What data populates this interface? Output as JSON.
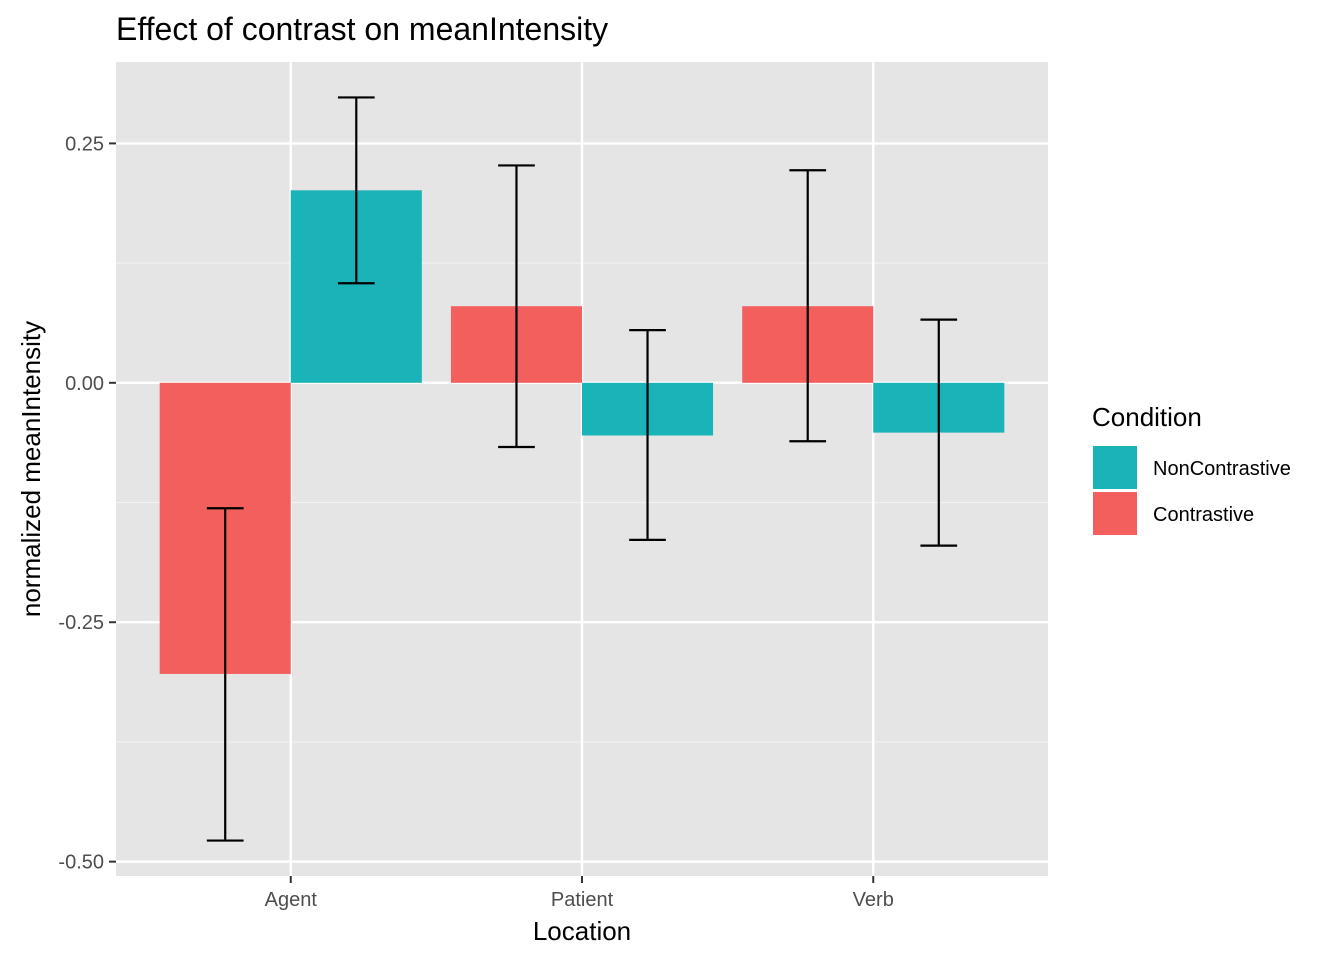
{
  "chart_data": {
    "type": "bar",
    "title": "Effect of contrast on meanIntensity",
    "xlabel": "Location",
    "ylabel": "normalized meanIntensity",
    "categories": [
      "Agent",
      "Patient",
      "Verb"
    ],
    "ylim": [
      -0.515,
      0.335
    ],
    "yticks": [
      -0.5,
      -0.25,
      0.0,
      0.25
    ],
    "ytick_labels": [
      "-0.50",
      "-0.25",
      "0.00",
      "0.25"
    ],
    "grid": true,
    "legend": {
      "title": "Condition",
      "placement": "right",
      "entries": [
        "NonContrastive",
        "Contrastive"
      ]
    },
    "series": [
      {
        "name": "Contrastive",
        "color": "#F25F5C",
        "values": [
          -0.304,
          0.08,
          0.08
        ],
        "error_low": [
          -0.478,
          -0.067,
          -0.061
        ],
        "error_high": [
          -0.131,
          0.227,
          0.222
        ]
      },
      {
        "name": "NonContrastive",
        "color": "#19B3B8",
        "values": [
          0.201,
          -0.055,
          -0.052
        ],
        "error_low": [
          0.104,
          -0.164,
          -0.17
        ],
        "error_high": [
          0.298,
          0.055,
          0.066
        ]
      }
    ],
    "bar_order": [
      "Contrastive",
      "NonContrastive"
    ]
  }
}
